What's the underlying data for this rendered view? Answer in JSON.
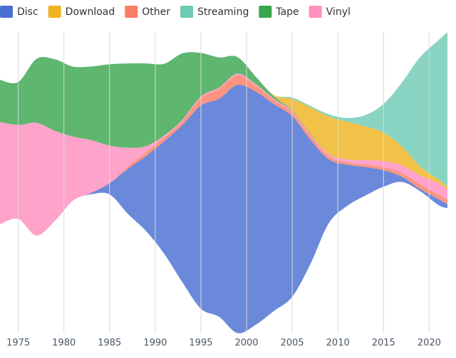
{
  "chart_data": {
    "type": "streamgraph",
    "offset": "wiggle",
    "order": "inside-out",
    "x": [
      1973,
      1975,
      1977,
      1979,
      1981,
      1983,
      1985,
      1987,
      1989,
      1991,
      1993,
      1995,
      1997,
      1999,
      2001,
      2003,
      2005,
      2007,
      2009,
      2011,
      2013,
      2015,
      2017,
      2019,
      2021,
      2022
    ],
    "xlim": [
      1973,
      2022
    ],
    "xticks": [
      1975,
      1980,
      1985,
      1990,
      1995,
      2000,
      2005,
      2010,
      2015,
      2020
    ],
    "grid": true,
    "legend": "top",
    "series": [
      {
        "name": "Disc",
        "color": "#4a6fd2",
        "values": [
          0,
          0,
          0,
          0,
          0,
          2,
          15,
          60,
          100,
          150,
          210,
          270,
          290,
          330,
          310,
          275,
          240,
          165,
          85,
          55,
          38,
          22,
          7,
          3,
          8,
          5
        ]
      },
      {
        "name": "Download",
        "color": "#efb320",
        "values": [
          0,
          0,
          0,
          0,
          0,
          0,
          0,
          0,
          0,
          0,
          0,
          0,
          0,
          0,
          0,
          2,
          15,
          35,
          50,
          50,
          45,
          38,
          25,
          12,
          5,
          4
        ]
      },
      {
        "name": "Other",
        "color": "#fb7d63",
        "values": [
          0,
          0,
          0,
          0,
          0,
          0,
          0,
          3,
          5,
          5,
          5,
          10,
          13,
          13,
          8,
          5,
          5,
          5,
          4,
          3,
          3,
          4,
          5,
          6,
          6,
          6
        ]
      },
      {
        "name": "Streaming",
        "color": "#6fcab5",
        "values": [
          0,
          0,
          0,
          0,
          0,
          0,
          0,
          0,
          0,
          0,
          0,
          0,
          0,
          0,
          0,
          0,
          2,
          2,
          3,
          5,
          15,
          38,
          85,
          145,
          185,
          205
        ]
      },
      {
        "name": "Tape",
        "color": "#3aa64f",
        "values": [
          56,
          57,
          85,
          95,
          93,
          98,
          108,
          112,
          110,
          95,
          88,
          58,
          40,
          22,
          10,
          3,
          1,
          1,
          0,
          0,
          0,
          0,
          0,
          0,
          0,
          0
        ]
      },
      {
        "name": "Vinyl",
        "color": "#ff8fbe",
        "values": [
          136,
          125,
          150,
          120,
          85,
          70,
          50,
          25,
          8,
          3,
          2,
          2,
          2,
          2,
          2,
          2,
          2,
          2,
          3,
          4,
          6,
          8,
          10,
          12,
          15,
          14
        ]
      }
    ]
  }
}
